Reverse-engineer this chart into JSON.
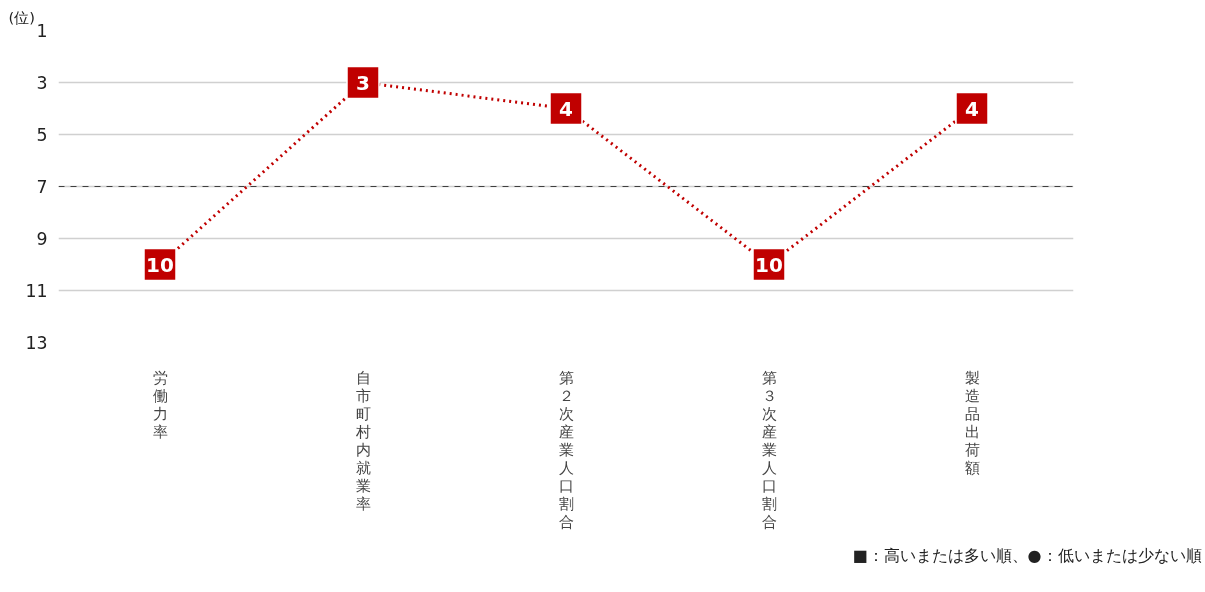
{
  "chart_data": {
    "type": "line",
    "ylabel": "(位)",
    "categories": [
      "労働力率",
      "自市町村内就業率",
      "第２次産業人口割合",
      "第３次産業人口割合",
      "製造品出荷額"
    ],
    "series": [
      {
        "color": "#c00000",
        "values": [
          10,
          3,
          4,
          10,
          4
        ]
      }
    ],
    "ylim": [
      13,
      1
    ],
    "yticks": [
      1,
      3,
      5,
      7,
      9,
      11,
      13
    ],
    "grid": "y",
    "marker": "square",
    "line_style": "dotted",
    "data_labels": true,
    "ref_lines": [
      {
        "axis": "y",
        "value": 7,
        "color": "#404040",
        "line_style": "dashed"
      }
    ],
    "annotations": [
      "■：高いまたは多い順、●：低いまたは少ない順"
    ]
  }
}
